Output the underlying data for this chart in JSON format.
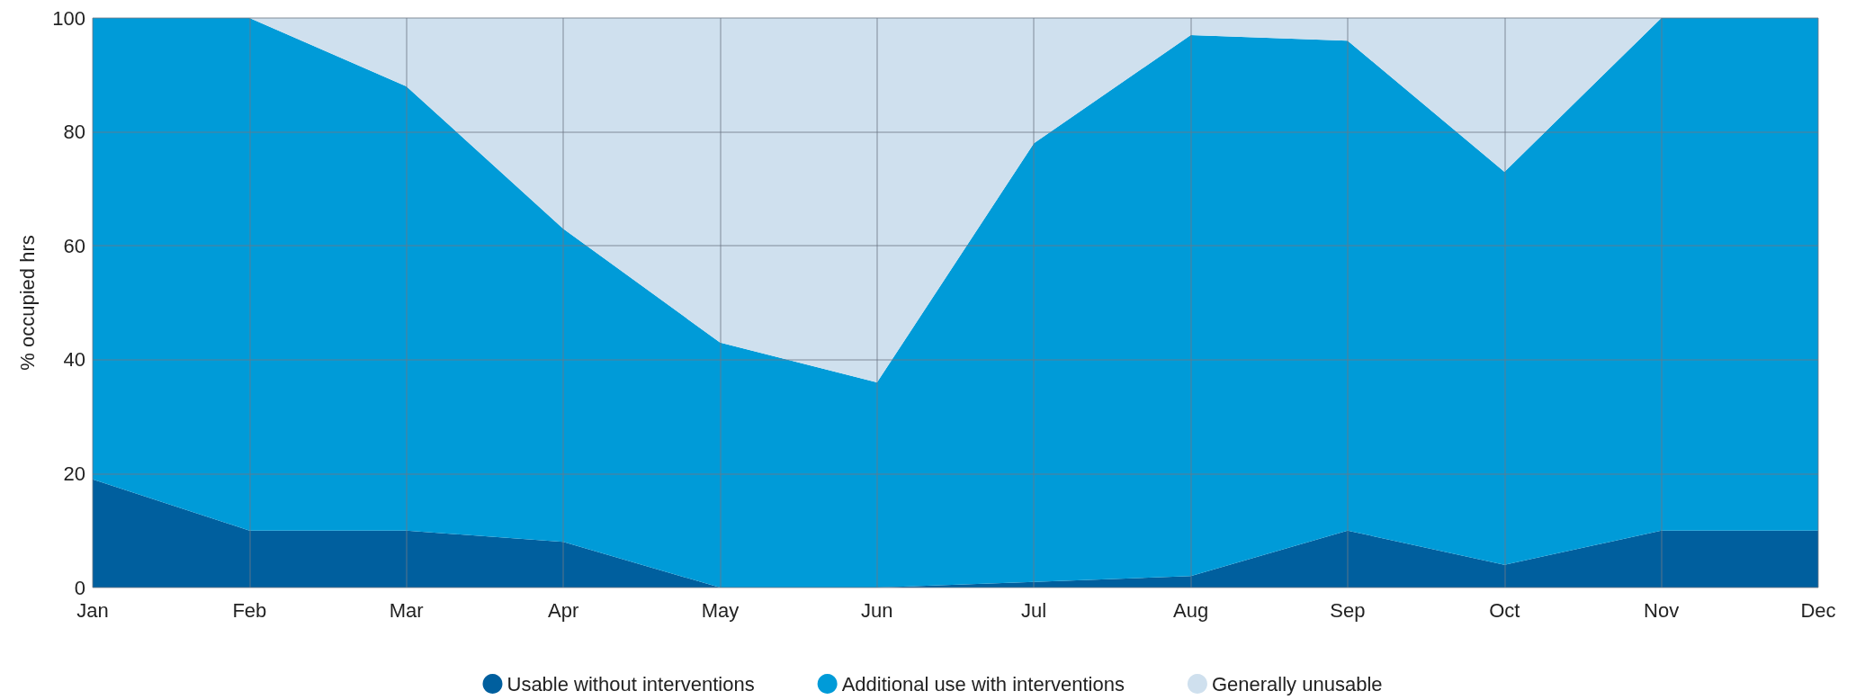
{
  "chart_data": {
    "type": "area",
    "stacked": true,
    "ylabel": "% occupied hrs",
    "categories": [
      "Jan",
      "Feb",
      "Mar",
      "Apr",
      "May",
      "Jun",
      "Jul",
      "Aug",
      "Sep",
      "Oct",
      "Nov",
      "Dec"
    ],
    "series": [
      {
        "name": "Usable without interventions",
        "color": "#005f9e",
        "values": [
          19,
          10,
          10,
          8,
          0,
          0,
          1,
          2,
          10,
          4,
          10,
          10
        ]
      },
      {
        "name": "Additional use with interventions",
        "color": "#009bd8",
        "values": [
          81,
          90,
          78,
          55,
          43,
          36,
          77,
          95,
          86,
          69,
          90,
          90
        ]
      },
      {
        "name": "Generally unusable",
        "color": "#cfe0ee",
        "values": [
          0,
          0,
          12,
          37,
          57,
          64,
          22,
          3,
          4,
          27,
          0,
          0
        ]
      }
    ],
    "ylim": [
      0,
      100
    ],
    "yticks": [
      0,
      20,
      40,
      60,
      80,
      100
    ],
    "grid": true,
    "legend": "bottom",
    "marker": "none"
  }
}
